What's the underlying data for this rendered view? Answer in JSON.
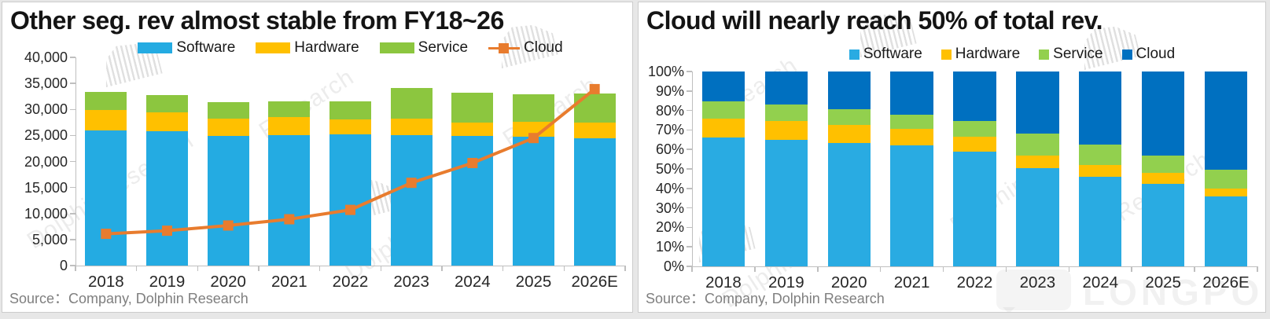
{
  "watermarks": {
    "brand": "DolphinResearch",
    "brand_part1": "Dolphin",
    "brand_part2": "Research",
    "logo_label": "LONGPORT"
  },
  "chart_data": [
    {
      "type": "stacked-bar-with-line",
      "title": "Other seg. rev almost stable from FY18~26",
      "source": "Source：Company, Dolphin Research",
      "categories": [
        "2018",
        "2019",
        "2020",
        "2021",
        "2022",
        "2023",
        "2024",
        "2025",
        "2026E"
      ],
      "ylim": [
        0,
        40000
      ],
      "yticks": [
        "40,000",
        "35,000",
        "30,000",
        "25,000",
        "20,000",
        "15,000",
        "10,000",
        "5,000",
        "0"
      ],
      "grid": false,
      "legend_position": "top-center",
      "series": [
        {
          "name": "Software",
          "type": "bar",
          "marker": "bar",
          "color": "#24ABE2",
          "values": [
            26000,
            25800,
            24900,
            25100,
            25200,
            25100,
            24900,
            24700,
            24500
          ]
        },
        {
          "name": "Hardware",
          "type": "bar",
          "marker": "bar",
          "color": "#FFC000",
          "values": [
            3900,
            3700,
            3300,
            3400,
            2900,
            3200,
            2600,
            2900,
            3000
          ]
        },
        {
          "name": "Service",
          "type": "bar",
          "marker": "bar",
          "color": "#8CC63F",
          "values": [
            3500,
            3300,
            3200,
            3000,
            3500,
            5800,
            5700,
            5300,
            5500
          ]
        },
        {
          "name": "Cloud",
          "type": "line",
          "marker": "line-square",
          "color": "#E87C2E",
          "values": [
            6100,
            6700,
            7700,
            8900,
            10700,
            15900,
            19700,
            24500,
            33900
          ]
        }
      ]
    },
    {
      "type": "stacked-bar-100pct",
      "title": "Cloud will nearly reach 50% of total rev.",
      "source": "Source：Company, Dolphin Research",
      "categories": [
        "2018",
        "2019",
        "2020",
        "2021",
        "2022",
        "2023",
        "2024",
        "2025",
        "2026E"
      ],
      "ylim": [
        0,
        100
      ],
      "yticks": [
        "100%",
        "90%",
        "80%",
        "70%",
        "60%",
        "50%",
        "40%",
        "30%",
        "20%",
        "10%",
        "0%"
      ],
      "grid": false,
      "legend_position": "top-center",
      "series": [
        {
          "name": "Software",
          "type": "bar",
          "marker": "square",
          "color": "#29ABE2",
          "values": [
            66,
            65,
            63.5,
            62,
            59,
            50.5,
            46,
            42.5,
            36
          ]
        },
        {
          "name": "Hardware",
          "type": "bar",
          "marker": "square",
          "color": "#FFC000",
          "values": [
            10,
            9.5,
            9,
            8.5,
            7.5,
            6.5,
            6,
            5.5,
            4
          ]
        },
        {
          "name": "Service",
          "type": "bar",
          "marker": "square",
          "color": "#92D04E",
          "values": [
            8.5,
            8.5,
            8,
            7.5,
            8,
            11,
            10.5,
            9,
            9.5
          ]
        },
        {
          "name": "Cloud",
          "type": "bar",
          "marker": "square",
          "color": "#0070C0",
          "values": [
            15.5,
            17,
            19.5,
            22,
            25.5,
            32,
            37.5,
            43,
            50.5
          ]
        }
      ]
    }
  ]
}
